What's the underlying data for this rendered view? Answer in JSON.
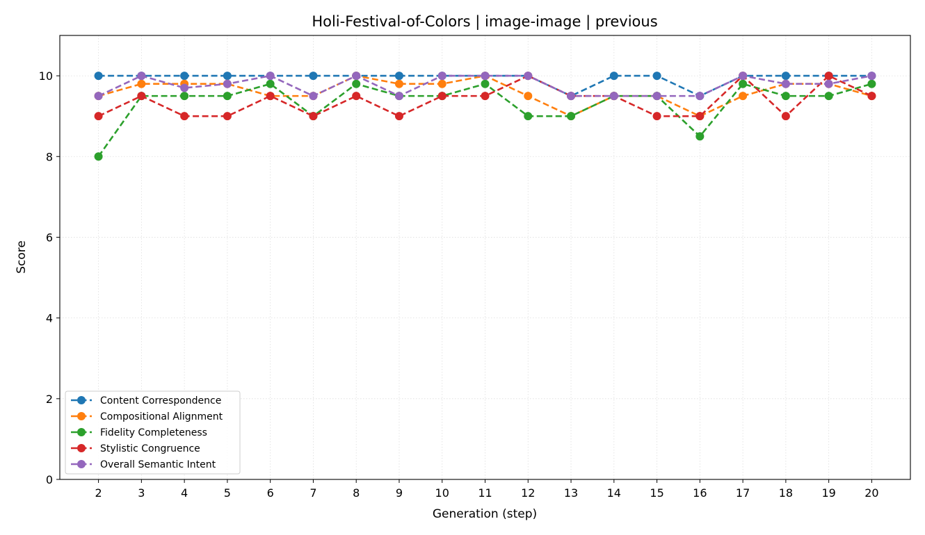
{
  "chart_data": {
    "type": "line",
    "title": "Holi-Festival-of-Colors | image-image | previous",
    "xlabel": "Generation (step)",
    "ylabel": "Score",
    "x": [
      2,
      3,
      4,
      5,
      6,
      7,
      8,
      9,
      10,
      11,
      12,
      13,
      14,
      15,
      16,
      17,
      18,
      19,
      20
    ],
    "xlim": [
      1.1,
      20.9
    ],
    "ylim": [
      0,
      11
    ],
    "yticks": [
      0,
      2,
      4,
      6,
      8,
      10
    ],
    "grid": true,
    "legend_position": "lower-left",
    "series": [
      {
        "name": "Content Correspondence",
        "color": "#1f77b4",
        "values": [
          10,
          10,
          10,
          10,
          10,
          10,
          10,
          10,
          10,
          10,
          10,
          9.5,
          10,
          10,
          9.5,
          10,
          10,
          10,
          10
        ]
      },
      {
        "name": "Compositional Alignment",
        "color": "#ff7f0e",
        "values": [
          9.5,
          9.8,
          9.8,
          9.8,
          9.5,
          9.5,
          10,
          9.8,
          9.8,
          10,
          9.5,
          9,
          9.5,
          9.5,
          9,
          9.5,
          9.8,
          9.8,
          9.5
        ]
      },
      {
        "name": "Fidelity Completeness",
        "color": "#2ca02c",
        "values": [
          8,
          9.5,
          9.5,
          9.5,
          9.8,
          9,
          9.8,
          9.5,
          9.5,
          9.8,
          9,
          9,
          9.5,
          9.5,
          8.5,
          9.8,
          9.5,
          9.5,
          9.8
        ]
      },
      {
        "name": "Stylistic Congruence",
        "color": "#d62728",
        "values": [
          9,
          9.5,
          9,
          9,
          9.5,
          9,
          9.5,
          9,
          9.5,
          9.5,
          10,
          9.5,
          9.5,
          9,
          9,
          10,
          9,
          10,
          9.5
        ]
      },
      {
        "name": "Overall Semantic Intent",
        "color": "#9467bd",
        "values": [
          9.5,
          10,
          9.7,
          9.8,
          10,
          9.5,
          10,
          9.5,
          10,
          10,
          10,
          9.5,
          9.5,
          9.5,
          9.5,
          10,
          9.8,
          9.8,
          10
        ]
      }
    ]
  }
}
